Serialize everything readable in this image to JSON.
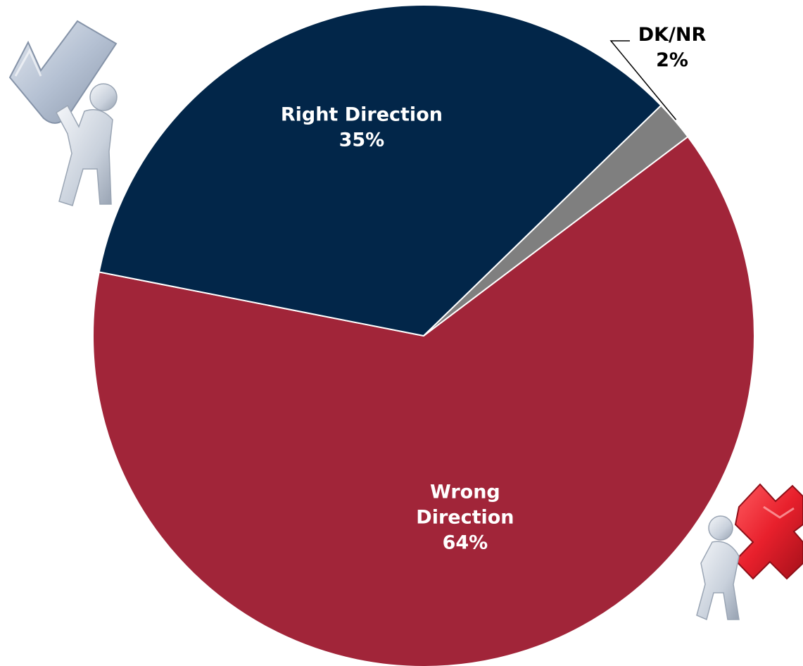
{
  "chart_data": {
    "type": "pie",
    "slices": [
      {
        "label": "Wrong Direction",
        "label_lines": [
          "Wrong",
          "Direction"
        ],
        "value": 64,
        "value_label": "64%",
        "color": "#a12539"
      },
      {
        "label": "Right Direction",
        "label_lines": [
          "Right Direction"
        ],
        "value": 35,
        "value_label": "35%",
        "color": "#022649"
      },
      {
        "label": "DK/NR",
        "label_lines": [
          "DK/NR"
        ],
        "value": 2,
        "value_label": "2%",
        "color": "#7f7f7f"
      }
    ],
    "label_colors": {
      "inside": "#ffffff",
      "outside": "#000000"
    }
  },
  "decorations": {
    "left_figure": {
      "icon": "person-carrying-checkmark-icon",
      "color": "#b5c1d3"
    },
    "right_figure": {
      "icon": "person-carrying-red-x-icon",
      "color": "#e8202c"
    }
  }
}
